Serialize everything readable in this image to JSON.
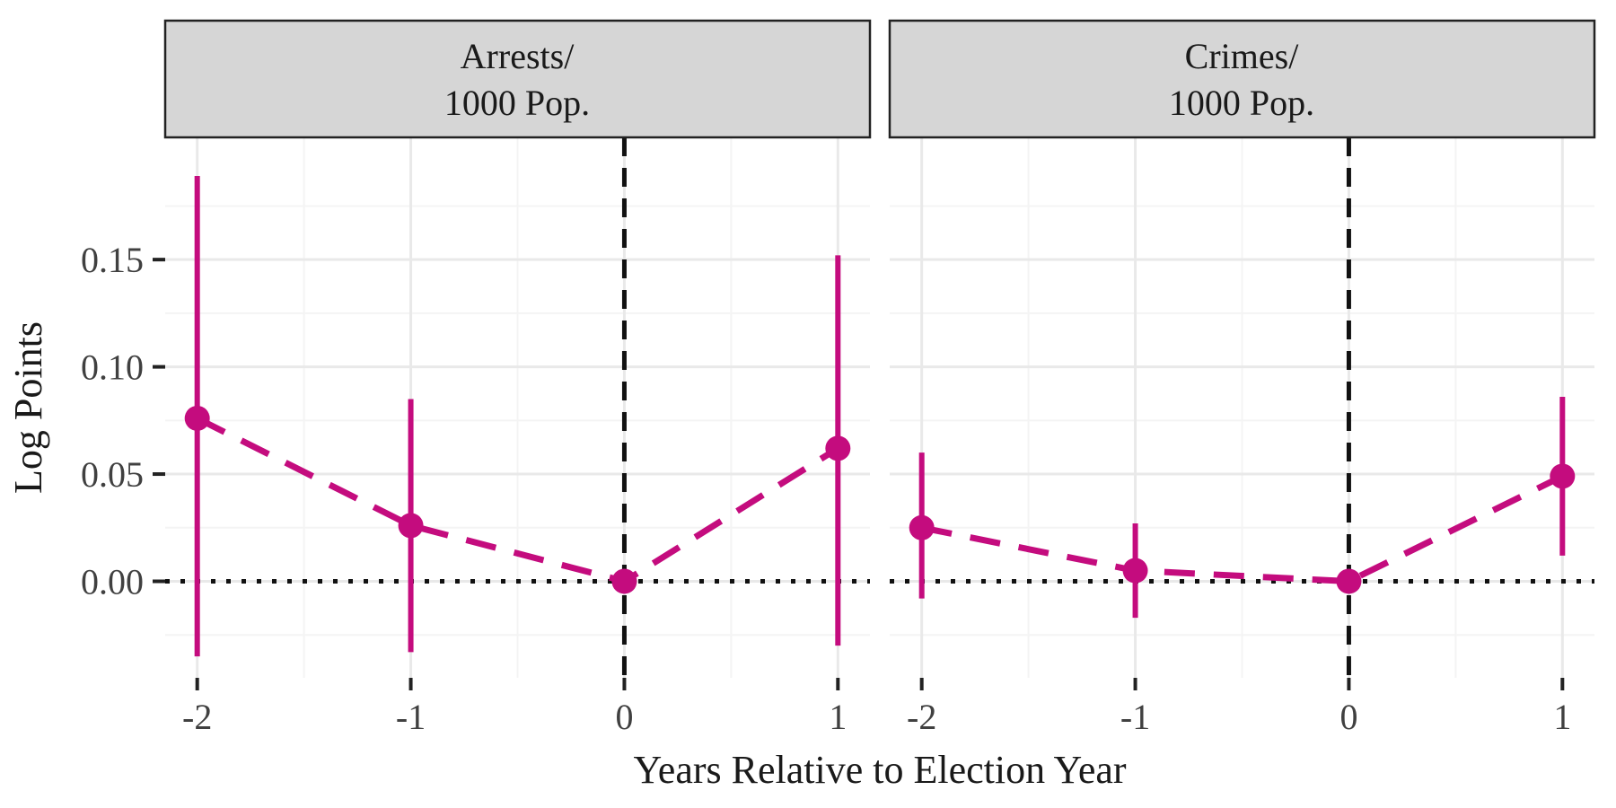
{
  "colors": {
    "accent": "#C40C7E",
    "strip_fill": "#D6D6D6",
    "strip_border": "#222222",
    "grid_major": "#E9E9E9",
    "grid_minor": "#F4F4F4",
    "ref_line": "#111111",
    "tick": "#222222",
    "text": "#1A1A1A",
    "tick_text": "#404040"
  },
  "axes": {
    "x_label": "Years Relative to Election Year",
    "y_label": "Log Points",
    "x_ticks": [
      -2,
      -1,
      0,
      1
    ],
    "x_tick_labels": [
      "-2",
      "-1",
      "0",
      "1"
    ],
    "y_ticks": [
      0.0,
      0.05,
      0.1,
      0.15
    ],
    "y_tick_labels": [
      "0.00",
      "0.05",
      "0.10",
      "0.15"
    ],
    "xlim": [
      -2.15,
      1.15
    ],
    "ylim": [
      -0.045,
      0.207
    ],
    "grid": true,
    "legend": "none"
  },
  "chart_data": {
    "type": "line",
    "title": "",
    "xlabel": "Years Relative to Election Year",
    "ylabel": "Log Points",
    "reference_lines": {
      "vline_x": 0,
      "hline_y": 0
    },
    "facets": [
      {
        "label_line1": "Arrests/",
        "label_line2": "1000 Pop.",
        "x": [
          -2,
          -1,
          0,
          1
        ],
        "estimates": [
          0.076,
          0.026,
          0.0,
          0.062
        ],
        "ci_low": [
          -0.035,
          -0.033,
          null,
          -0.03
        ],
        "ci_high": [
          0.189,
          0.085,
          null,
          0.152
        ]
      },
      {
        "label_line1": "Crimes/",
        "label_line2": "1000 Pop.",
        "x": [
          -2,
          -1,
          0,
          1
        ],
        "estimates": [
          0.025,
          0.005,
          0.0,
          0.049
        ],
        "ci_low": [
          -0.008,
          -0.017,
          null,
          0.012
        ],
        "ci_high": [
          0.06,
          0.027,
          null,
          0.086
        ]
      }
    ]
  }
}
